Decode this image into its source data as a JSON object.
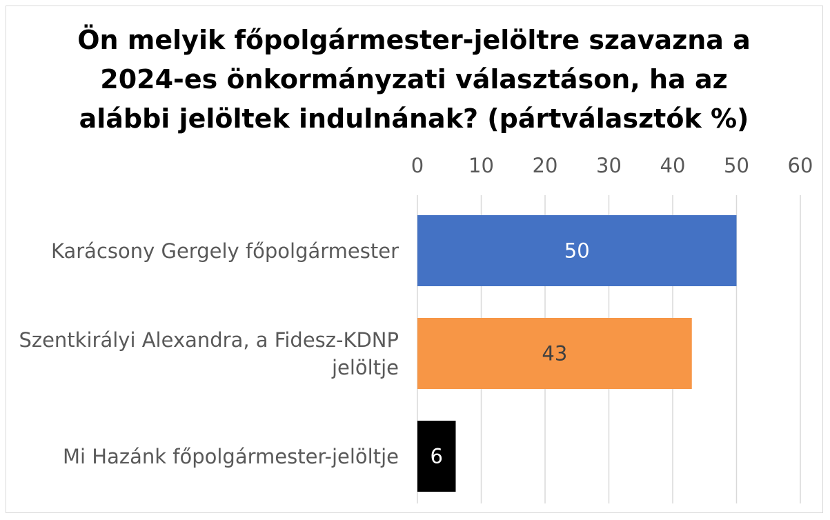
{
  "chart_data": {
    "type": "bar",
    "orientation": "horizontal",
    "title": "Ön melyik főpolgármester-jelöltre szavazna a 2024-es önkormányzati választáson, ha az alábbi jelöltek indulnának? (pártválasztók %)",
    "categories": [
      "Karácsony Gergely főpolgármester",
      "Szentkirályi Alexandra, a Fidesz-KDNP jelöltje",
      "Mi Hazánk főpolgármester-jelöltje"
    ],
    "values": [
      50,
      43,
      6
    ],
    "colors": [
      "#4472c4",
      "#f79646",
      "#000000"
    ],
    "xlim": [
      0,
      60
    ],
    "xticks": [
      0,
      10,
      20,
      30,
      40,
      50,
      60
    ],
    "grid": true
  }
}
